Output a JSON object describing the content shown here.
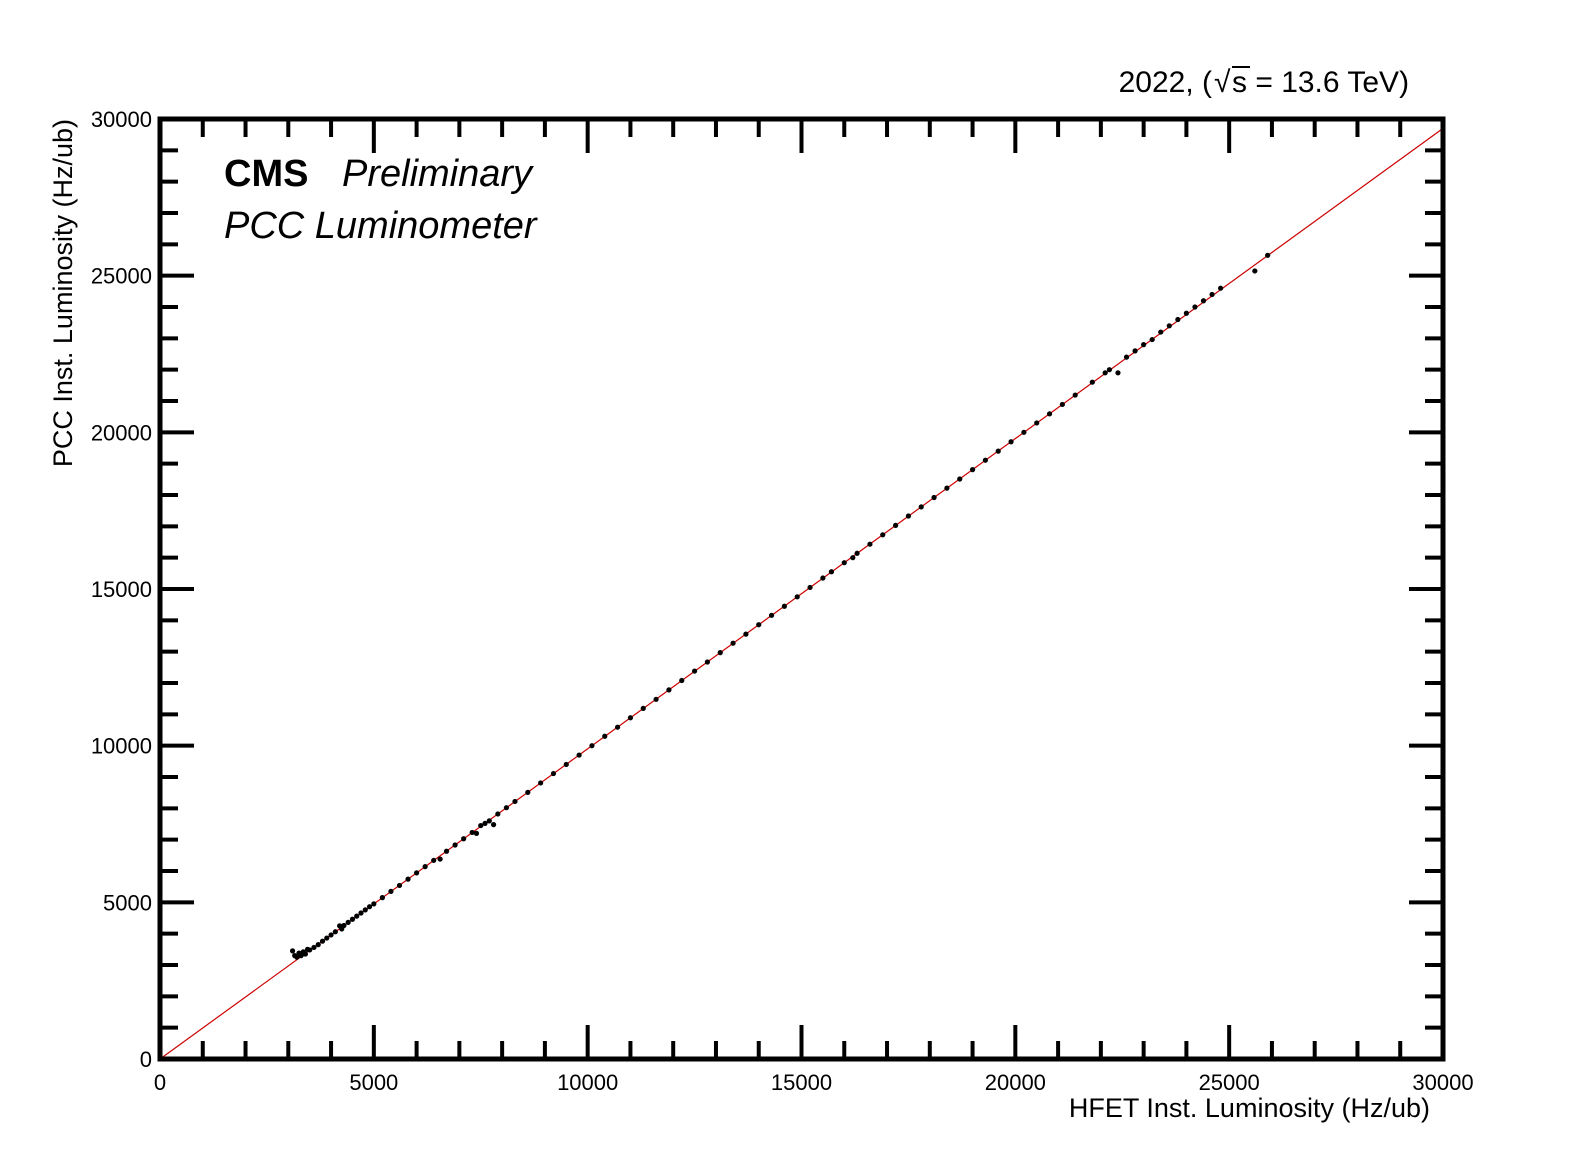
{
  "chart_data": {
    "type": "scatter",
    "header": {
      "year": "2022, (",
      "sqrt_symbol": "√",
      "energy": "s = 13.6 TeV)"
    },
    "labels": {
      "experiment": "CMS",
      "status": "Preliminary",
      "subtitle": "PCC Luminometer"
    },
    "xlabel": "HFET Inst. Luminosity (Hz/ub)",
    "ylabel": "PCC Inst. Luminosity (Hz/ub)",
    "xlim": [
      0,
      30000
    ],
    "ylim": [
      0,
      30000
    ],
    "xticks": [
      "0",
      "5000",
      "10000",
      "15000",
      "20000",
      "25000",
      "30000"
    ],
    "yticks": [
      "0",
      "5000",
      "10000",
      "15000",
      "20000",
      "25000",
      "30000"
    ],
    "grid": false,
    "colors": {
      "points": "#000000",
      "fit_line": "#cc0000",
      "frame": "#000000"
    },
    "fit_line": {
      "slope": 0.99,
      "intercept": 0
    },
    "series": [
      {
        "points": [
          [
            3100,
            3450
          ],
          [
            3150,
            3300
          ],
          [
            3200,
            3250
          ],
          [
            3250,
            3380
          ],
          [
            3300,
            3300
          ],
          [
            3350,
            3420
          ],
          [
            3400,
            3350
          ],
          [
            3450,
            3500
          ],
          [
            3500,
            3480
          ],
          [
            3600,
            3560
          ],
          [
            3700,
            3650
          ],
          [
            3800,
            3760
          ],
          [
            3900,
            3860
          ],
          [
            4000,
            3960
          ],
          [
            4100,
            4060
          ],
          [
            4200,
            4250
          ],
          [
            4250,
            4150
          ],
          [
            4300,
            4260
          ],
          [
            4400,
            4360
          ],
          [
            4500,
            4460
          ],
          [
            4600,
            4560
          ],
          [
            4700,
            4660
          ],
          [
            4800,
            4760
          ],
          [
            4900,
            4860
          ],
          [
            5000,
            4950
          ],
          [
            5200,
            5150
          ],
          [
            5400,
            5350
          ],
          [
            5600,
            5540
          ],
          [
            5800,
            5740
          ],
          [
            6000,
            5940
          ],
          [
            6200,
            6140
          ],
          [
            6400,
            6340
          ],
          [
            6550,
            6380
          ],
          [
            6700,
            6630
          ],
          [
            6900,
            6830
          ],
          [
            7100,
            7030
          ],
          [
            7300,
            7230
          ],
          [
            7400,
            7200
          ],
          [
            7500,
            7450
          ],
          [
            7600,
            7520
          ],
          [
            7700,
            7600
          ],
          [
            7800,
            7480
          ],
          [
            7900,
            7820
          ],
          [
            8100,
            8020
          ],
          [
            8300,
            8220
          ],
          [
            8600,
            8510
          ],
          [
            8900,
            8810
          ],
          [
            9200,
            9110
          ],
          [
            9500,
            9400
          ],
          [
            9800,
            9700
          ],
          [
            10100,
            10000
          ],
          [
            10400,
            10300
          ],
          [
            10700,
            10590
          ],
          [
            11000,
            10890
          ],
          [
            11300,
            11190
          ],
          [
            11600,
            11480
          ],
          [
            11900,
            11780
          ],
          [
            12200,
            12080
          ],
          [
            12500,
            12380
          ],
          [
            12800,
            12670
          ],
          [
            13100,
            12970
          ],
          [
            13400,
            13270
          ],
          [
            13700,
            13560
          ],
          [
            14000,
            13860
          ],
          [
            14300,
            14160
          ],
          [
            14600,
            14450
          ],
          [
            14900,
            14750
          ],
          [
            15200,
            15050
          ],
          [
            15500,
            15350
          ],
          [
            15700,
            15550
          ],
          [
            16000,
            15840
          ],
          [
            16200,
            16000
          ],
          [
            16300,
            16140
          ],
          [
            16600,
            16430
          ],
          [
            16900,
            16730
          ],
          [
            17200,
            17030
          ],
          [
            17500,
            17330
          ],
          [
            17800,
            17620
          ],
          [
            18100,
            17920
          ],
          [
            18400,
            18220
          ],
          [
            18700,
            18510
          ],
          [
            19000,
            18810
          ],
          [
            19300,
            19110
          ],
          [
            19600,
            19400
          ],
          [
            19900,
            19700
          ],
          [
            20200,
            20000
          ],
          [
            20500,
            20300
          ],
          [
            20800,
            20590
          ],
          [
            21100,
            20890
          ],
          [
            21400,
            21190
          ],
          [
            21800,
            21600
          ],
          [
            22100,
            21900
          ],
          [
            22200,
            22000
          ],
          [
            22400,
            21900
          ],
          [
            22600,
            22400
          ],
          [
            22800,
            22600
          ],
          [
            23000,
            22800
          ],
          [
            23200,
            22960
          ],
          [
            23400,
            23200
          ],
          [
            23600,
            23400
          ],
          [
            23800,
            23600
          ],
          [
            24000,
            23800
          ],
          [
            24200,
            24000
          ],
          [
            24400,
            24200
          ],
          [
            24600,
            24400
          ],
          [
            24800,
            24600
          ],
          [
            25600,
            25150
          ],
          [
            25900,
            25650
          ]
        ]
      }
    ]
  }
}
